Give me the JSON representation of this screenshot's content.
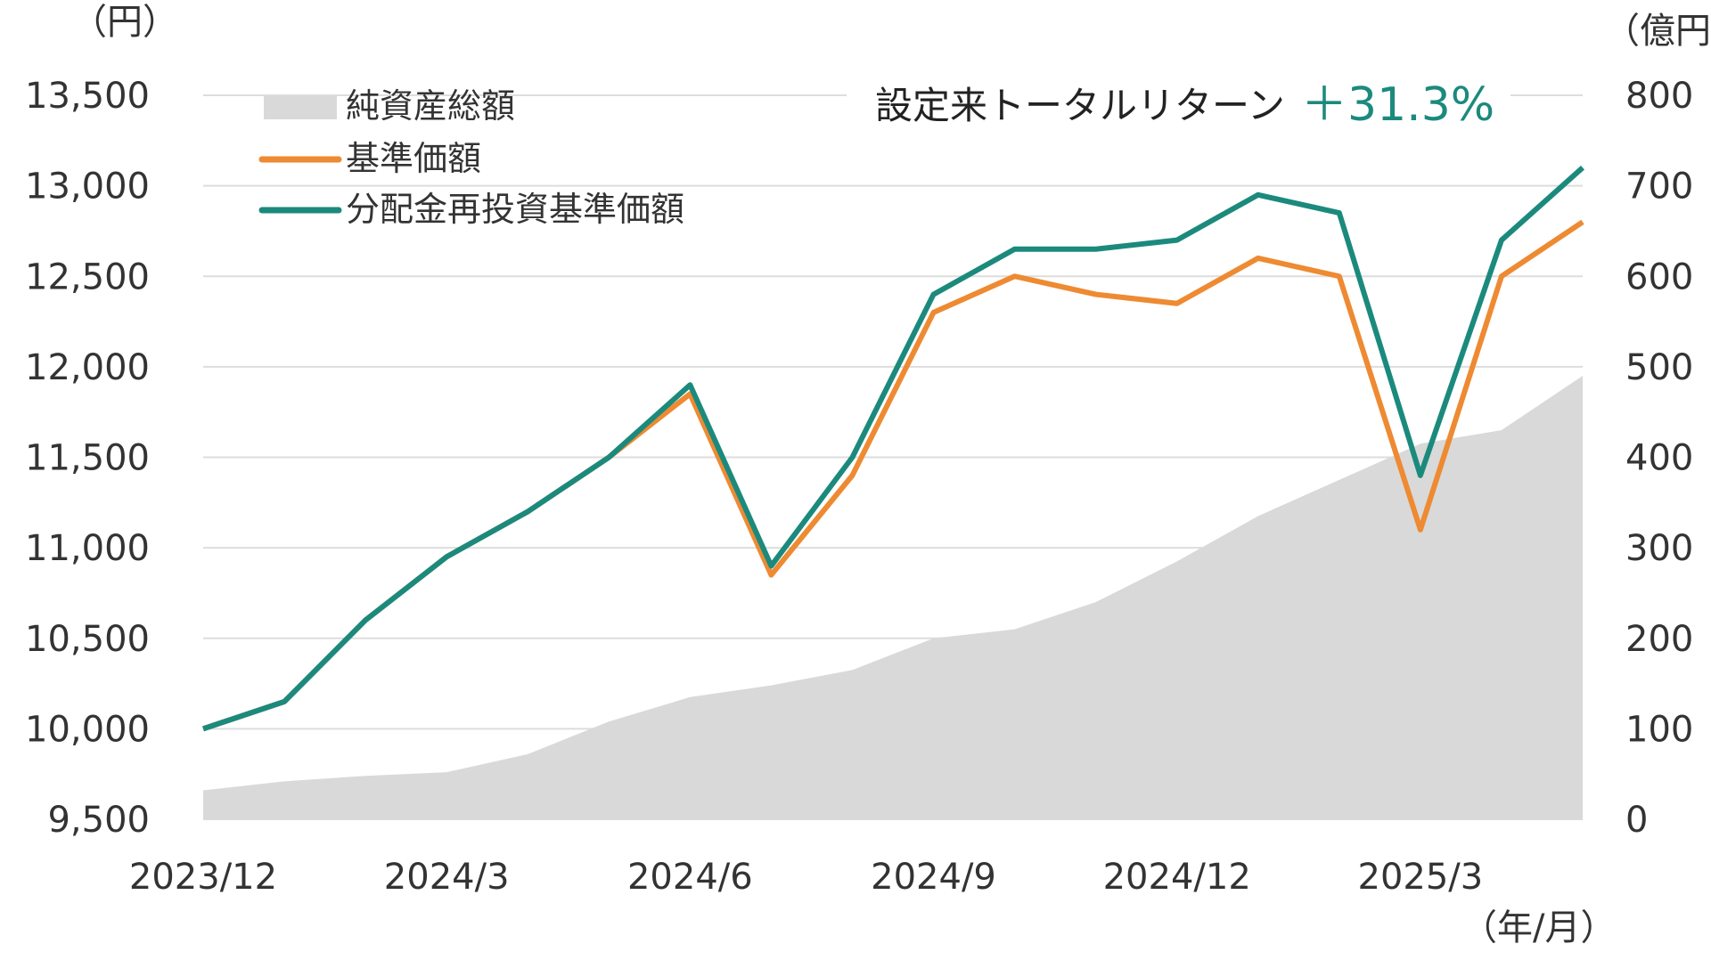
{
  "chart_data": {
    "type": "line",
    "left_axis_unit": "（円）",
    "right_axis_unit": "（億円）",
    "x_axis_unit": "（年/月）",
    "y_left_ticks": [
      "13,500",
      "13,000",
      "12,500",
      "12,000",
      "11,500",
      "11,000",
      "10,500",
      "10,000",
      "9,500"
    ],
    "y_left_range": [
      9500,
      13500
    ],
    "y_right_ticks": [
      "800",
      "700",
      "600",
      "500",
      "400",
      "300",
      "200",
      "100",
      "0"
    ],
    "y_right_range": [
      0,
      800
    ],
    "x_ticks": [
      "2023/12",
      "2024/3",
      "2024/6",
      "2024/9",
      "2024/12",
      "2025/3"
    ],
    "x_range_months": [
      "2023/12",
      "2025/5"
    ],
    "grid": true,
    "legend_position": "top-left",
    "legend": [
      {
        "name": "純資産総額",
        "kind": "area",
        "color": "#d9d9d9"
      },
      {
        "name": "基準価額",
        "kind": "line",
        "color": "#ee8a32"
      },
      {
        "name": "分配金再投資基準価額",
        "kind": "line",
        "color": "#1b8a7d"
      }
    ],
    "annotation": {
      "label": "設定来トータルリターン",
      "value": "＋31.3%"
    },
    "series": [
      {
        "name": "純資産総額",
        "axis": "right",
        "x": [
          "2023/12",
          "2024/1",
          "2024/2",
          "2024/3",
          "2024/4",
          "2024/5",
          "2024/6",
          "2024/7",
          "2024/8",
          "2024/9",
          "2024/10",
          "2024/11",
          "2024/12",
          "2025/1",
          "2025/2",
          "2025/3",
          "2025/4",
          "2025/5"
        ],
        "values": [
          32,
          42,
          48,
          52,
          72,
          108,
          135,
          148,
          165,
          200,
          210,
          240,
          285,
          335,
          375,
          415,
          430,
          490
        ]
      },
      {
        "name": "基準価額",
        "axis": "left",
        "x": [
          "2023/12",
          "2024/1",
          "2024/2",
          "2024/3",
          "2024/4",
          "2024/5",
          "2024/6",
          "2024/7",
          "2024/8",
          "2024/9",
          "2024/10",
          "2024/11",
          "2024/12",
          "2025/1",
          "2025/2",
          "2025/3",
          "2025/4",
          "2025/5"
        ],
        "values": [
          10000,
          10150,
          10600,
          10950,
          11200,
          11500,
          11850,
          10850,
          11400,
          12300,
          12500,
          12400,
          12350,
          12600,
          12500,
          11100,
          12500,
          12800
        ]
      },
      {
        "name": "分配金再投資基準価額",
        "axis": "left",
        "x": [
          "2023/12",
          "2024/1",
          "2024/2",
          "2024/3",
          "2024/4",
          "2024/5",
          "2024/6",
          "2024/7",
          "2024/8",
          "2024/9",
          "2024/10",
          "2024/11",
          "2024/12",
          "2025/1",
          "2025/2",
          "2025/3",
          "2025/4",
          "2025/5"
        ],
        "values": [
          10000,
          10150,
          10600,
          10950,
          11200,
          11500,
          11900,
          10900,
          11500,
          12400,
          12650,
          12650,
          12700,
          12950,
          12850,
          11400,
          12700,
          13100
        ]
      }
    ]
  }
}
